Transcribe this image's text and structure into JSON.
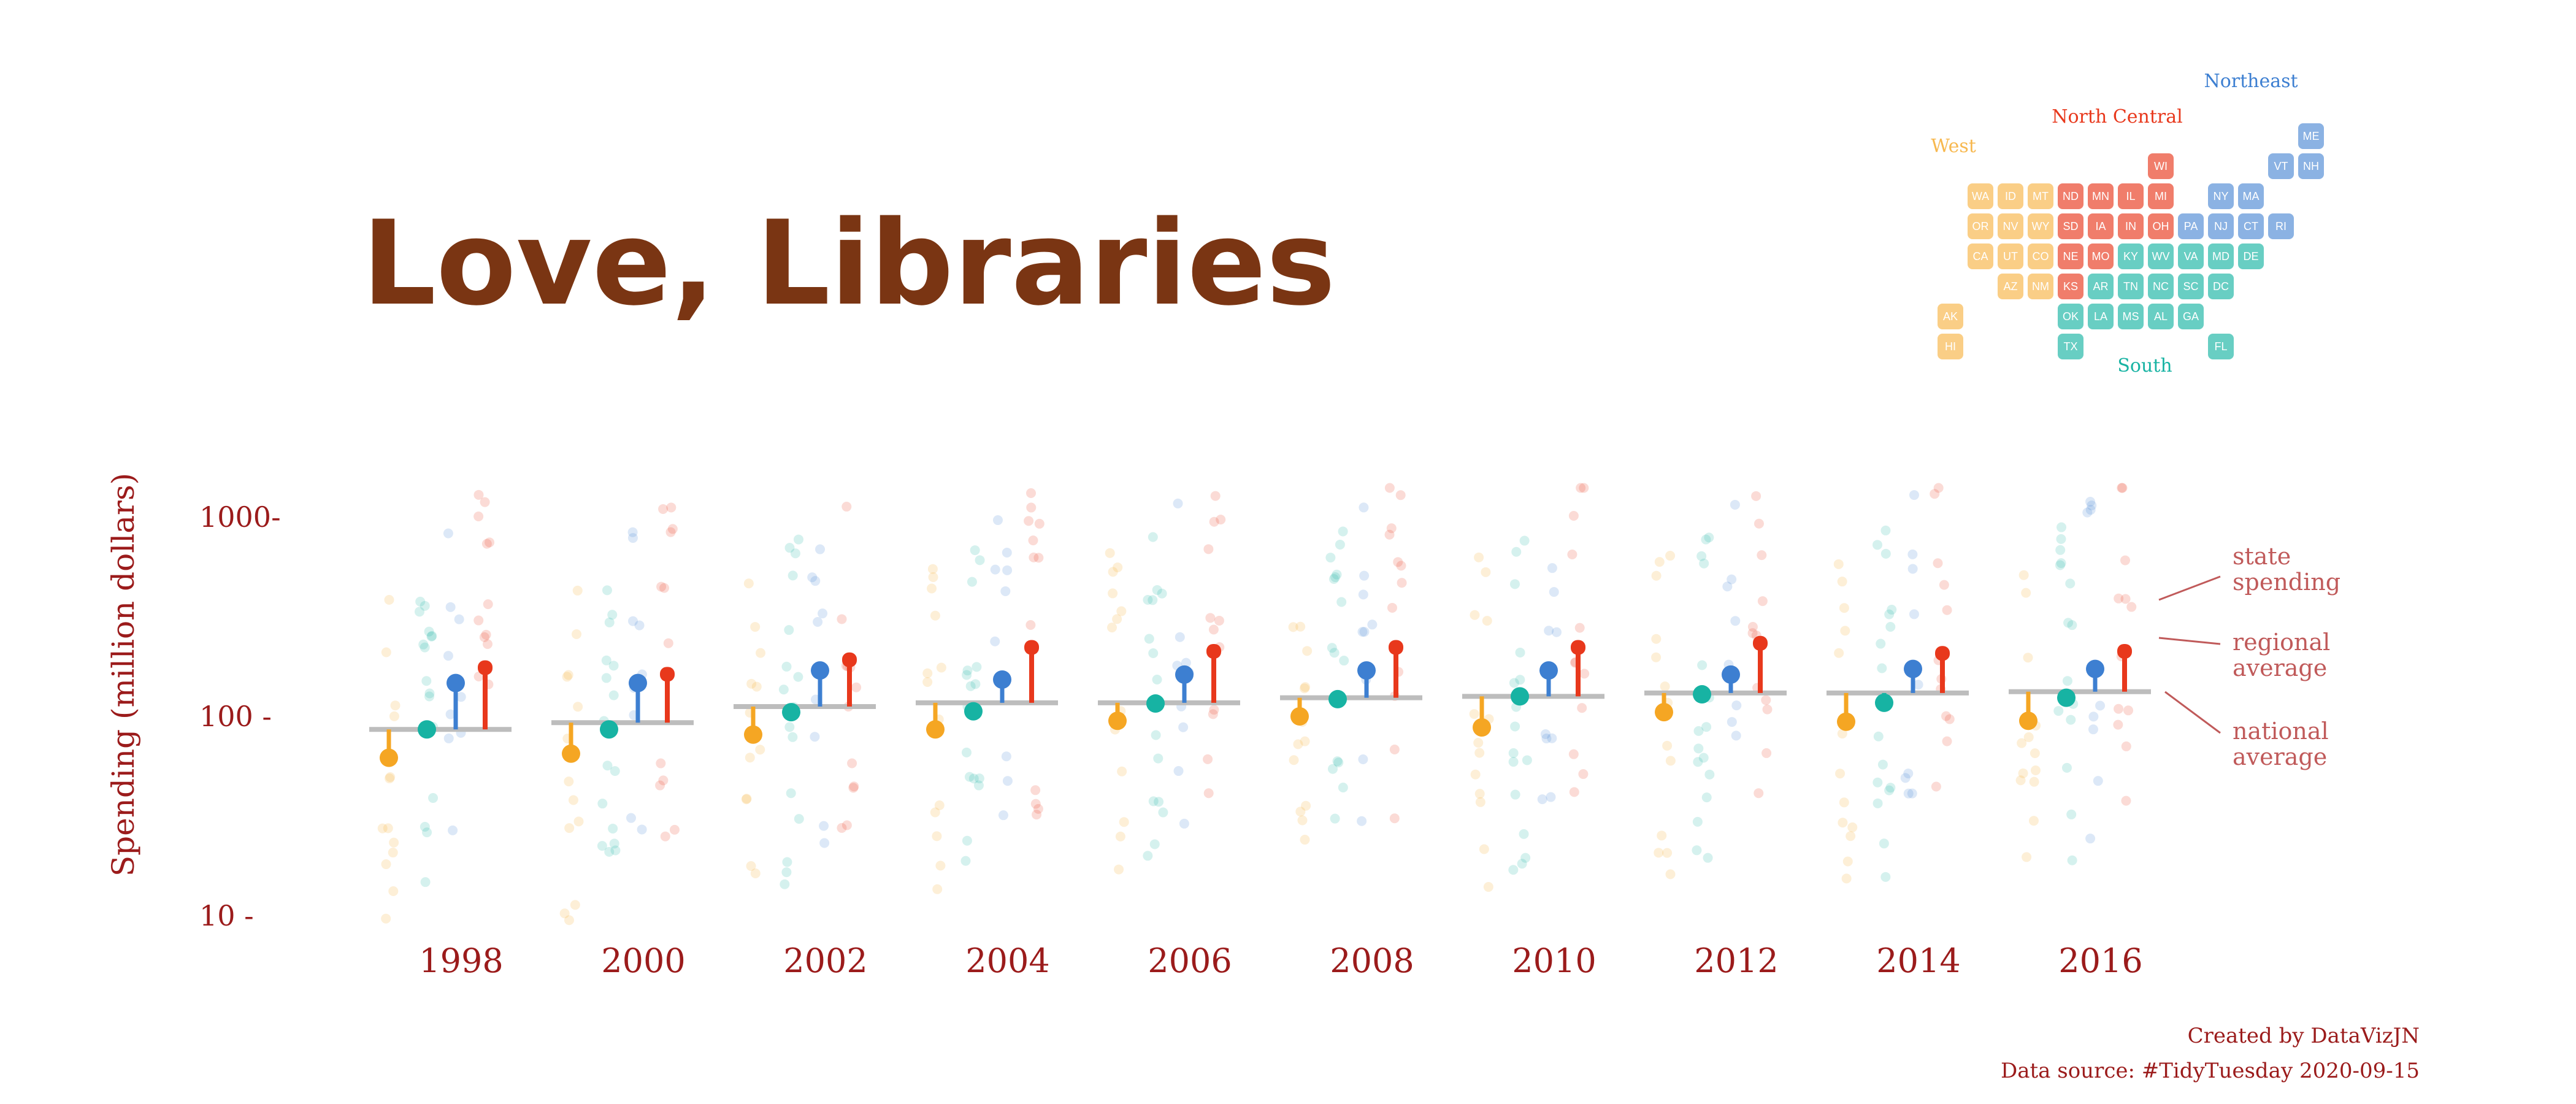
{
  "title": "Love, Libraries",
  "caption": {
    "credit": "Created by DataVizJN",
    "source": "Data source: #TidyTuesday 2020-09-15"
  },
  "colors": {
    "title": "#7a3513",
    "text": "#9b1b1b",
    "annotation": "#c05a5a",
    "national": "#bdbdbd",
    "West": "#f5a623",
    "South": "#17b3a3",
    "Northeast": "#3d7fd1",
    "North Central": "#e8381c"
  },
  "chart_data": {
    "type": "scatter",
    "ylabel": "Spending (million dollars)",
    "y_scale": "log",
    "ylim": [
      8,
      1500
    ],
    "y_ticks": [
      {
        "value": 1000,
        "label": "1000-"
      },
      {
        "value": 100,
        "label": "100 -"
      },
      {
        "value": 10,
        "label": "10  -"
      }
    ],
    "categories": [
      "1998",
      "2000",
      "2002",
      "2004",
      "2006",
      "2008",
      "2010",
      "2012",
      "2014",
      "2016"
    ],
    "regions": [
      "West",
      "South",
      "Northeast",
      "North Central"
    ],
    "national_average": [
      86,
      93,
      112,
      117,
      117,
      124,
      126,
      131,
      131,
      133
    ],
    "series": [
      {
        "name": "West",
        "values": [
          62,
          65,
          81,
          86,
          95,
          100,
          88,
          105,
          94,
          95
        ]
      },
      {
        "name": "South",
        "values": [
          86,
          86,
          105,
          106,
          116,
          122,
          126,
          129,
          117,
          124
        ]
      },
      {
        "name": "Northeast",
        "values": [
          147,
          147,
          170,
          153,
          162,
          170,
          170,
          162,
          173,
          173
        ]
      },
      {
        "name": "North Central",
        "values": [
          178,
          165,
          195,
          225,
          215,
          225,
          225,
          236,
          210,
          215
        ]
      }
    ],
    "legend_annotations": [
      {
        "line1": "state",
        "line2": "spending"
      },
      {
        "line1": "regional",
        "line2": "average"
      },
      {
        "line1": "national",
        "line2": "average"
      }
    ],
    "map_legend": {
      "labels": [
        "West",
        "North Central",
        "Northeast",
        "South"
      ],
      "tiles": [
        {
          "s": "WI",
          "r": "North Central"
        },
        {
          "s": "ME",
          "r": "Northeast"
        },
        {
          "s": "VT",
          "r": "Northeast"
        },
        {
          "s": "NH",
          "r": "Northeast"
        },
        {
          "s": "WA",
          "r": "West"
        },
        {
          "s": "ID",
          "r": "West"
        },
        {
          "s": "MT",
          "r": "West"
        },
        {
          "s": "ND",
          "r": "North Central"
        },
        {
          "s": "MN",
          "r": "North Central"
        },
        {
          "s": "IL",
          "r": "North Central"
        },
        {
          "s": "MI",
          "r": "North Central"
        },
        {
          "s": "NY",
          "r": "Northeast"
        },
        {
          "s": "MA",
          "r": "Northeast"
        },
        {
          "s": "OR",
          "r": "West"
        },
        {
          "s": "NV",
          "r": "West"
        },
        {
          "s": "WY",
          "r": "West"
        },
        {
          "s": "SD",
          "r": "North Central"
        },
        {
          "s": "IA",
          "r": "North Central"
        },
        {
          "s": "IN",
          "r": "North Central"
        },
        {
          "s": "OH",
          "r": "North Central"
        },
        {
          "s": "PA",
          "r": "Northeast"
        },
        {
          "s": "NJ",
          "r": "Northeast"
        },
        {
          "s": "CT",
          "r": "Northeast"
        },
        {
          "s": "RI",
          "r": "Northeast"
        },
        {
          "s": "CA",
          "r": "West"
        },
        {
          "s": "UT",
          "r": "West"
        },
        {
          "s": "CO",
          "r": "West"
        },
        {
          "s": "NE",
          "r": "North Central"
        },
        {
          "s": "MO",
          "r": "North Central"
        },
        {
          "s": "KY",
          "r": "South"
        },
        {
          "s": "WV",
          "r": "South"
        },
        {
          "s": "VA",
          "r": "South"
        },
        {
          "s": "MD",
          "r": "South"
        },
        {
          "s": "DE",
          "r": "South"
        },
        {
          "s": "AZ",
          "r": "West"
        },
        {
          "s": "NM",
          "r": "West"
        },
        {
          "s": "KS",
          "r": "North Central"
        },
        {
          "s": "AR",
          "r": "South"
        },
        {
          "s": "TN",
          "r": "South"
        },
        {
          "s": "NC",
          "r": "South"
        },
        {
          "s": "SC",
          "r": "South"
        },
        {
          "s": "DC",
          "r": "South"
        },
        {
          "s": "AK",
          "r": "West"
        },
        {
          "s": "OK",
          "r": "South"
        },
        {
          "s": "LA",
          "r": "South"
        },
        {
          "s": "MS",
          "r": "South"
        },
        {
          "s": "AL",
          "r": "South"
        },
        {
          "s": "GA",
          "r": "South"
        },
        {
          "s": "HI",
          "r": "West"
        },
        {
          "s": "TX",
          "r": "South"
        },
        {
          "s": "FL",
          "r": "South"
        }
      ]
    }
  }
}
